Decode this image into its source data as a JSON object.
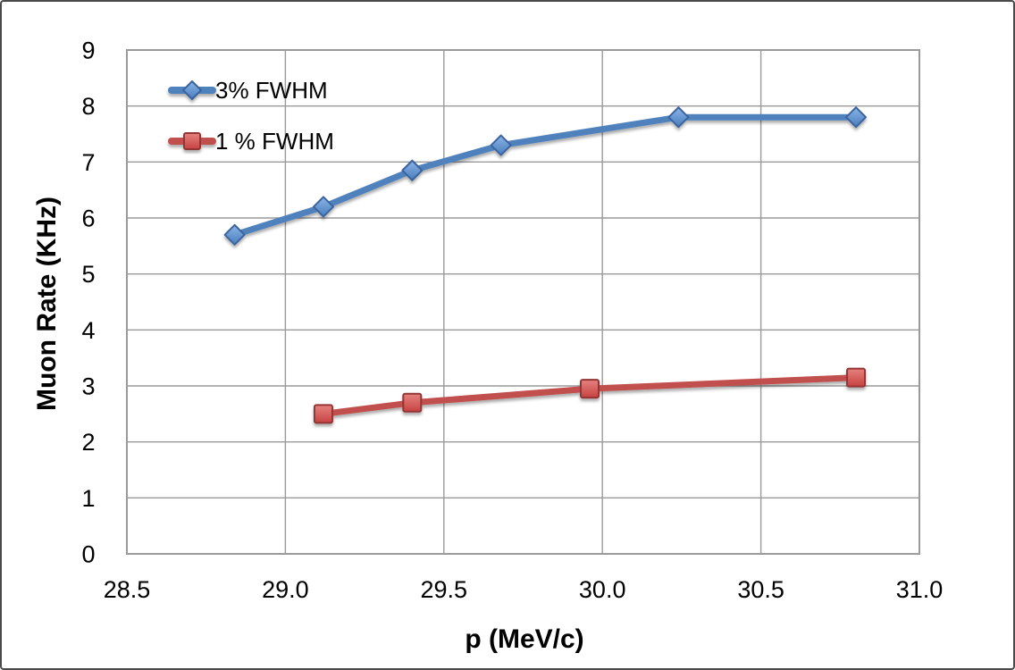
{
  "figure": {
    "background_color": "#ffffff",
    "border_color": "#4a4a4a"
  },
  "chart_data": {
    "type": "line",
    "title": "",
    "xlabel": "p (MeV/c)",
    "ylabel": "Muon Rate (KHz)",
    "xlim": [
      28.5,
      31.0
    ],
    "ylim": [
      0,
      9
    ],
    "xticks": [
      28.5,
      29.0,
      29.5,
      30.0,
      30.5,
      31.0
    ],
    "xtick_labels": [
      "28.5",
      "29.0",
      "29.5",
      "30.0",
      "30.5",
      "31.0"
    ],
    "yticks": [
      0,
      1,
      2,
      3,
      4,
      5,
      6,
      7,
      8,
      9
    ],
    "ytick_labels": [
      "0",
      "1",
      "2",
      "3",
      "4",
      "5",
      "6",
      "7",
      "8",
      "9"
    ],
    "grid": true,
    "gridline_color": "#9a9a9a",
    "plot_border_color": "#9a9a9a",
    "legend_position": "top-left-inside",
    "series": [
      {
        "name": "3% FWHM",
        "color": "#4f81bd",
        "marker": "diamond",
        "marker_fill_light": "#8ab4e4",
        "marker_fill_dark": "#4a7ebf",
        "marker_stroke": "#3a649e",
        "points": [
          [
            28.84,
            5.7
          ],
          [
            29.12,
            6.2
          ],
          [
            29.4,
            6.85
          ],
          [
            29.68,
            7.3
          ],
          [
            30.24,
            7.8
          ],
          [
            30.8,
            7.8
          ]
        ]
      },
      {
        "name": "1 % FWHM",
        "color": "#c0504d",
        "marker": "square",
        "marker_fill_light": "#e5827f",
        "marker_fill_dark": "#c74341",
        "marker_stroke": "#943634",
        "points": [
          [
            29.12,
            2.5
          ],
          [
            29.4,
            2.7
          ],
          [
            29.96,
            2.95
          ],
          [
            30.8,
            3.15
          ]
        ]
      }
    ]
  }
}
